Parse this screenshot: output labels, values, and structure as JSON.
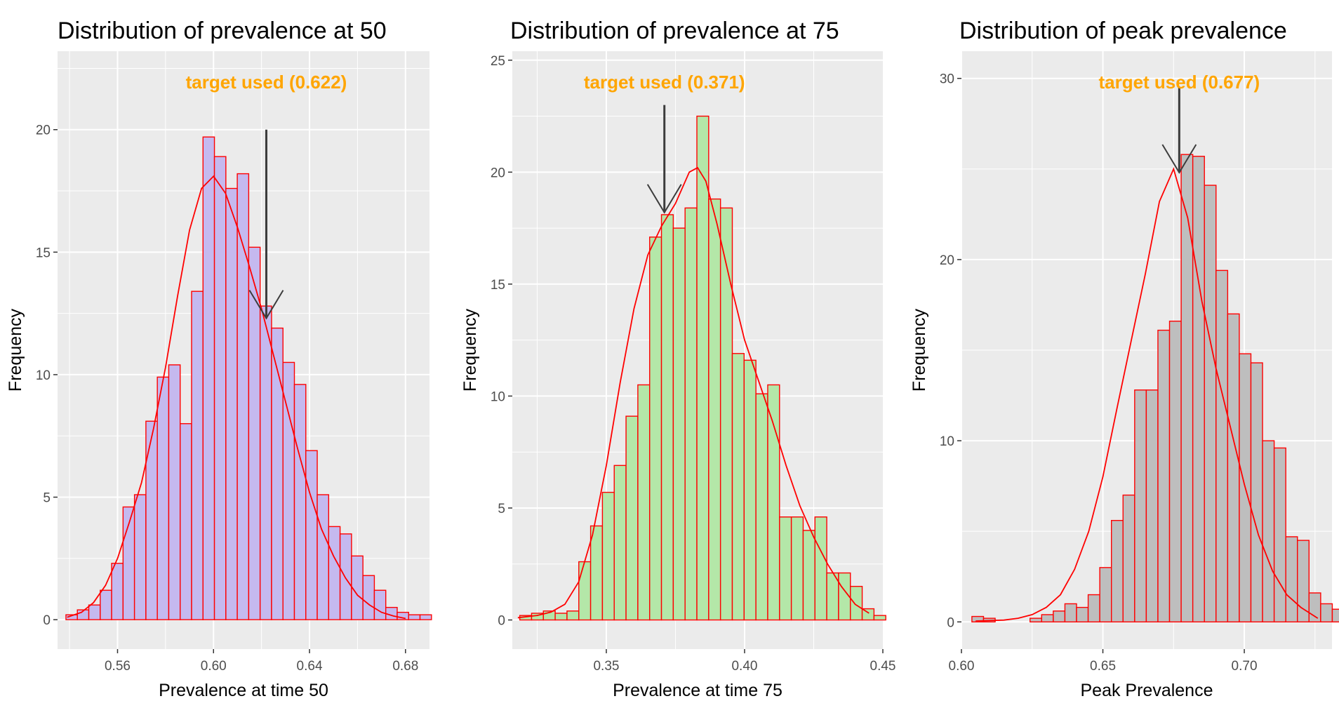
{
  "chart_data": [
    {
      "type": "bar",
      "title": "Distribution of prevalence at 50",
      "xlabel": "Prevalence at time 50",
      "ylabel": "Frequency",
      "xlim": [
        0.535,
        0.69
      ],
      "ylim": [
        -1.2,
        23.2
      ],
      "x_ticks": [
        0.56,
        0.6,
        0.64,
        0.68
      ],
      "x_tick_labels": [
        "0.56",
        "0.60",
        "0.64",
        "0.68"
      ],
      "y_ticks": [
        0,
        5,
        10,
        15,
        20
      ],
      "y_tick_labels": [
        "0",
        "5",
        "10",
        "15",
        "20"
      ],
      "bin_start": 0.5385,
      "bin_width": 0.00476,
      "values": [
        0.2,
        0.4,
        0.6,
        1.2,
        2.3,
        4.6,
        5.1,
        8.1,
        9.9,
        10.4,
        8.0,
        13.4,
        19.7,
        18.9,
        17.6,
        18.2,
        15.2,
        12.8,
        11.9,
        10.5,
        9.6,
        6.9,
        5.1,
        3.8,
        3.5,
        2.6,
        1.8,
        1.2,
        0.5,
        0.3,
        0.2,
        0.2
      ],
      "density": [
        [
          0.539,
          0.1
        ],
        [
          0.545,
          0.3
        ],
        [
          0.55,
          0.7
        ],
        [
          0.555,
          1.4
        ],
        [
          0.56,
          2.5
        ],
        [
          0.565,
          4.0
        ],
        [
          0.57,
          5.6
        ],
        [
          0.575,
          7.8
        ],
        [
          0.58,
          10.3
        ],
        [
          0.585,
          13.2
        ],
        [
          0.59,
          15.9
        ],
        [
          0.595,
          17.6
        ],
        [
          0.6,
          18.1
        ],
        [
          0.605,
          17.4
        ],
        [
          0.61,
          16.0
        ],
        [
          0.615,
          14.4
        ],
        [
          0.62,
          12.7
        ],
        [
          0.625,
          10.8
        ],
        [
          0.63,
          8.9
        ],
        [
          0.635,
          7.0
        ],
        [
          0.64,
          5.2
        ],
        [
          0.645,
          3.7
        ],
        [
          0.65,
          2.6
        ],
        [
          0.655,
          1.7
        ],
        [
          0.66,
          1.0
        ],
        [
          0.665,
          0.6
        ],
        [
          0.67,
          0.3
        ],
        [
          0.675,
          0.15
        ],
        [
          0.68,
          0.05
        ]
      ],
      "fill_color": "#c5b9ef",
      "stroke_color": "#ff0000",
      "annotation": {
        "text": "target used (0.622)",
        "value": 0.622,
        "arrow_top": 20,
        "arrow_tip": 12.3,
        "color": "#ffa500"
      }
    },
    {
      "type": "bar",
      "title": "Distribution of prevalence at 75",
      "xlabel": "Prevalence at time 75",
      "ylabel": "Frequency",
      "xlim": [
        0.316,
        0.45
      ],
      "ylim": [
        -1.3,
        25.4
      ],
      "x_ticks": [
        0.35,
        0.4,
        0.45
      ],
      "x_tick_labels": [
        "0.35",
        "0.40",
        "0.45"
      ],
      "y_ticks": [
        0,
        5,
        10,
        15,
        20,
        25
      ],
      "y_tick_labels": [
        "0",
        "5",
        "10",
        "15",
        "20",
        "25"
      ],
      "bin_start": 0.3187,
      "bin_width": 0.00427,
      "values": [
        0.2,
        0.3,
        0.4,
        0.3,
        0.4,
        2.6,
        4.2,
        5.7,
        6.9,
        9.1,
        10.5,
        17.1,
        18.1,
        17.5,
        18.4,
        22.5,
        18.8,
        18.4,
        11.9,
        11.6,
        10.1,
        10.5,
        4.6,
        4.6,
        4.0,
        4.6,
        2.1,
        2.1,
        1.5,
        0.5,
        0.2
      ],
      "density": [
        [
          0.318,
          0.1
        ],
        [
          0.325,
          0.2
        ],
        [
          0.33,
          0.35
        ],
        [
          0.335,
          0.7
        ],
        [
          0.34,
          1.7
        ],
        [
          0.345,
          3.8
        ],
        [
          0.35,
          6.9
        ],
        [
          0.355,
          10.6
        ],
        [
          0.36,
          13.9
        ],
        [
          0.365,
          16.3
        ],
        [
          0.37,
          17.6
        ],
        [
          0.375,
          18.6
        ],
        [
          0.38,
          20.0
        ],
        [
          0.383,
          20.2
        ],
        [
          0.386,
          19.6
        ],
        [
          0.39,
          17.7
        ],
        [
          0.395,
          15.0
        ],
        [
          0.4,
          12.5
        ],
        [
          0.405,
          10.7
        ],
        [
          0.41,
          8.9
        ],
        [
          0.415,
          6.9
        ],
        [
          0.42,
          5.1
        ],
        [
          0.425,
          3.7
        ],
        [
          0.43,
          2.5
        ],
        [
          0.435,
          1.5
        ],
        [
          0.44,
          0.7
        ],
        [
          0.445,
          0.3
        ]
      ],
      "fill_color": "#b4e7a8",
      "stroke_color": "#ff0000",
      "annotation": {
        "text": "target used (0.371)",
        "value": 0.371,
        "arrow_top": 23,
        "arrow_tip": 18.2,
        "color": "#ffa500"
      }
    },
    {
      "type": "bar",
      "title": "Distribution of peak prevalence",
      "xlabel": "Peak Prevalence",
      "ylabel": "Frequency",
      "xlim": [
        0.6,
        0.731
      ],
      "ylim": [
        -1.5,
        31.5
      ],
      "x_ticks": [
        0.6,
        0.65,
        0.7
      ],
      "x_tick_labels": [
        "0.60",
        "0.65",
        "0.70"
      ],
      "y_ticks": [
        0,
        10,
        20,
        30
      ],
      "y_tick_labels": [
        "0",
        "10",
        "20",
        "30"
      ],
      "bin_start": 0.6037,
      "bin_width": 0.00411,
      "values": [
        0.3,
        0.2,
        0.0,
        0.0,
        0.0,
        0.2,
        0.4,
        0.6,
        1.0,
        0.8,
        1.5,
        3.0,
        5.6,
        7.0,
        12.8,
        12.8,
        16.1,
        16.6,
        25.8,
        25.7,
        24.1,
        19.4,
        17.0,
        14.8,
        14.3,
        10.0,
        9.6,
        4.7,
        4.5,
        1.6,
        1.0,
        0.7,
        1.0
      ],
      "density": [
        [
          0.605,
          0.05
        ],
        [
          0.615,
          0.1
        ],
        [
          0.62,
          0.2
        ],
        [
          0.625,
          0.4
        ],
        [
          0.63,
          0.8
        ],
        [
          0.635,
          1.5
        ],
        [
          0.64,
          2.9
        ],
        [
          0.645,
          5.0
        ],
        [
          0.65,
          8.0
        ],
        [
          0.655,
          11.8
        ],
        [
          0.66,
          15.5
        ],
        [
          0.665,
          19.2
        ],
        [
          0.67,
          23.2
        ],
        [
          0.675,
          25.0
        ],
        [
          0.68,
          22.3
        ],
        [
          0.685,
          17.7
        ],
        [
          0.69,
          14.0
        ],
        [
          0.695,
          10.8
        ],
        [
          0.7,
          7.6
        ],
        [
          0.705,
          4.8
        ],
        [
          0.71,
          2.8
        ],
        [
          0.715,
          1.5
        ],
        [
          0.72,
          0.8
        ],
        [
          0.726,
          0.2
        ]
      ],
      "fill_color": "#bebebe",
      "stroke_color": "#ff0000",
      "annotation": {
        "text": "target used (0.677)",
        "value": 0.677,
        "arrow_top": 29.5,
        "arrow_tip": 24.8,
        "color": "#ffa500"
      }
    }
  ]
}
